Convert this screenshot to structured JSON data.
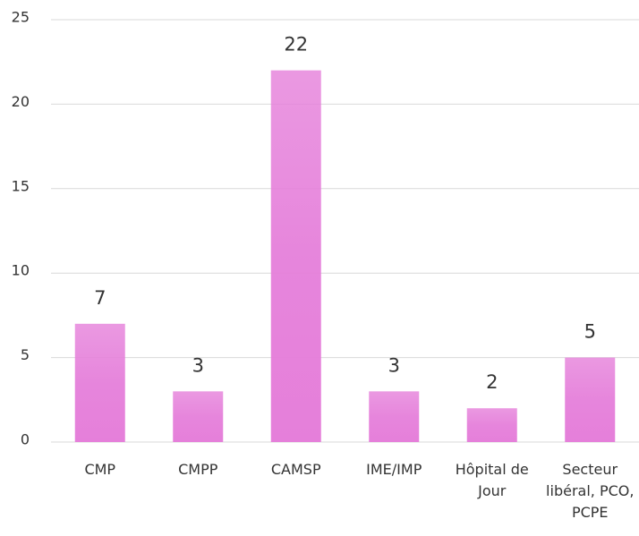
{
  "chart_data": {
    "type": "bar",
    "categories": [
      "CMP",
      "CMPP",
      "CAMSP",
      "IME/IMP",
      "Hôpital de Jour",
      "Secteur libéral, PCO, PCPE"
    ],
    "values": [
      7,
      3,
      22,
      3,
      2,
      5
    ],
    "color": "#e57fda",
    "ylim": [
      0,
      25
    ],
    "yticks": [
      0,
      5,
      10,
      15,
      20,
      25
    ],
    "grid": true
  }
}
